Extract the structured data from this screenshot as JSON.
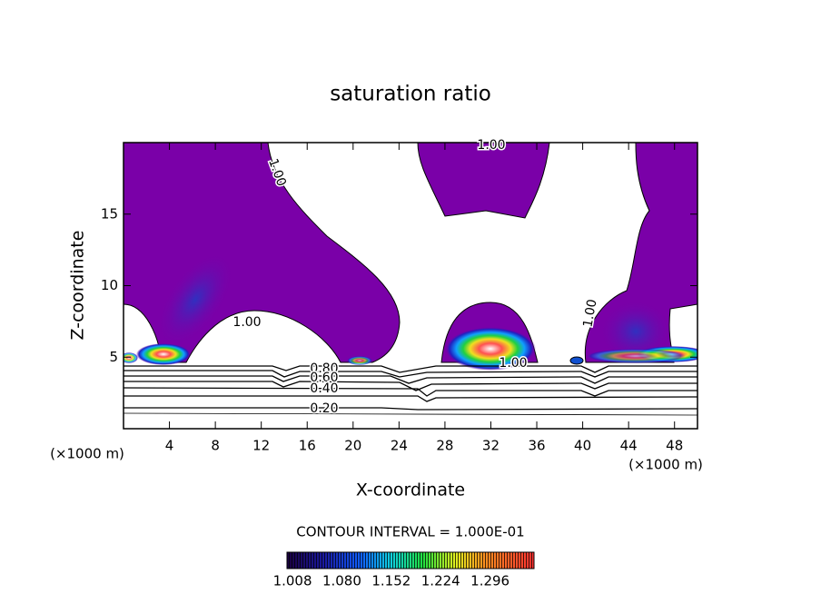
{
  "chart_data": {
    "type": "contour",
    "title": "saturation ratio",
    "x_label": "X-coordinate",
    "y_label": "Z-coordinate",
    "x_unit_labels": [
      "(×1000 m)",
      "(×1000 m)"
    ],
    "xlim": [
      0,
      50
    ],
    "ylim": [
      0,
      20
    ],
    "xticks": [
      4,
      8,
      12,
      16,
      20,
      24,
      28,
      32,
      36,
      40,
      44,
      48
    ],
    "yticks": [
      5,
      10,
      15
    ],
    "contour_labels": [
      "1.00",
      "1.00",
      "1.00",
      "1.00",
      "1.00",
      "0.80",
      "0.60",
      "0.40",
      "0.20"
    ],
    "contour_interval_text": "CONTOUR INTERVAL = 1.000E-01",
    "colorbar": {
      "lim": [
        1.0,
        1.36
      ],
      "ticks": [
        1.008,
        {
          "value": 1.08,
          "label": "1.080"
        },
        1.152,
        1.224,
        1.296
      ]
    }
  }
}
